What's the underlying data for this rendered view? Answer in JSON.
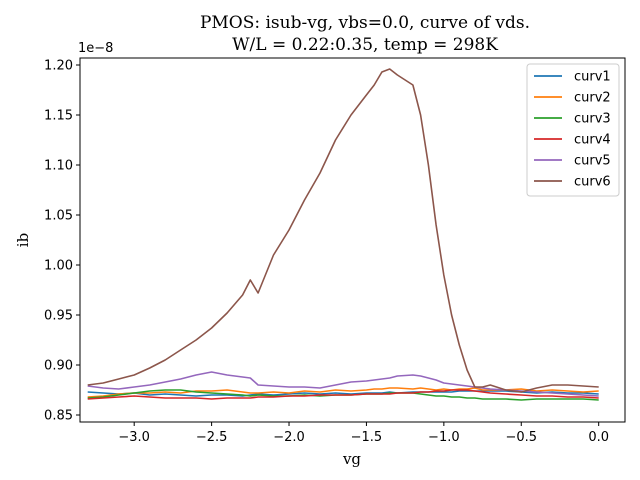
{
  "chart_data": {
    "type": "line",
    "title": "PMOS: isub-vg, vbs=0.0, curve of vds.",
    "subtitle": "W/L = 0.22:0.35, temp = 298K",
    "xlabel": "vg",
    "ylabel": "ib",
    "y_offset_label": "1e−8",
    "xlim": [
      -3.35,
      0.17
    ],
    "ylim": [
      0.843,
      1.207
    ],
    "x_ticks": [
      -3.0,
      -2.5,
      -2.0,
      -1.5,
      -1.0,
      -0.5,
      0.0
    ],
    "x_tick_labels": [
      "−3.0",
      "−2.5",
      "−2.0",
      "−1.5",
      "−1.0",
      "−0.5",
      "0.0"
    ],
    "y_ticks": [
      0.85,
      0.9,
      0.95,
      1.0,
      1.05,
      1.1,
      1.15,
      1.2
    ],
    "y_tick_labels": [
      "0.85",
      "0.90",
      "0.95",
      "1.00",
      "1.05",
      "1.10",
      "1.15",
      "1.20"
    ],
    "legend_position": "top-right",
    "grid": false,
    "x": [
      -3.3,
      -3.2,
      -3.1,
      -3.0,
      -2.9,
      -2.8,
      -2.7,
      -2.6,
      -2.5,
      -2.4,
      -2.3,
      -2.25,
      -2.2,
      -2.1,
      -2.0,
      -1.9,
      -1.8,
      -1.7,
      -1.6,
      -1.5,
      -1.45,
      -1.4,
      -1.35,
      -1.3,
      -1.2,
      -1.15,
      -1.1,
      -1.05,
      -1.0,
      -0.95,
      -0.9,
      -0.85,
      -0.8,
      -0.75,
      -0.7,
      -0.6,
      -0.5,
      -0.4,
      -0.3,
      -0.2,
      -0.1,
      0.0
    ],
    "series": [
      {
        "name": "curv1",
        "color": "#1f77b4",
        "values": [
          0.873,
          0.872,
          0.871,
          0.872,
          0.87,
          0.871,
          0.87,
          0.869,
          0.87,
          0.87,
          0.869,
          0.87,
          0.871,
          0.87,
          0.871,
          0.872,
          0.871,
          0.872,
          0.871,
          0.872,
          0.872,
          0.872,
          0.873,
          0.872,
          0.873,
          0.873,
          0.873,
          0.873,
          0.873,
          0.873,
          0.874,
          0.874,
          0.874,
          0.874,
          0.874,
          0.874,
          0.873,
          0.872,
          0.873,
          0.872,
          0.872,
          0.871
        ]
      },
      {
        "name": "curv2",
        "color": "#ff7f0e",
        "values": [
          0.868,
          0.869,
          0.871,
          0.872,
          0.872,
          0.873,
          0.872,
          0.874,
          0.874,
          0.875,
          0.873,
          0.872,
          0.872,
          0.873,
          0.872,
          0.874,
          0.873,
          0.875,
          0.874,
          0.875,
          0.876,
          0.876,
          0.877,
          0.877,
          0.876,
          0.877,
          0.876,
          0.875,
          0.876,
          0.875,
          0.876,
          0.876,
          0.877,
          0.875,
          0.875,
          0.875,
          0.876,
          0.874,
          0.875,
          0.874,
          0.873,
          0.874
        ]
      },
      {
        "name": "curv3",
        "color": "#2ca02c",
        "values": [
          0.867,
          0.868,
          0.87,
          0.872,
          0.874,
          0.875,
          0.875,
          0.873,
          0.872,
          0.871,
          0.87,
          0.869,
          0.87,
          0.869,
          0.869,
          0.87,
          0.869,
          0.87,
          0.87,
          0.871,
          0.871,
          0.871,
          0.872,
          0.872,
          0.872,
          0.871,
          0.87,
          0.869,
          0.869,
          0.868,
          0.868,
          0.867,
          0.867,
          0.866,
          0.866,
          0.866,
          0.865,
          0.866,
          0.866,
          0.866,
          0.866,
          0.865
        ]
      },
      {
        "name": "curv4",
        "color": "#d62728",
        "values": [
          0.866,
          0.867,
          0.868,
          0.869,
          0.868,
          0.867,
          0.867,
          0.867,
          0.866,
          0.867,
          0.867,
          0.867,
          0.868,
          0.868,
          0.869,
          0.869,
          0.87,
          0.87,
          0.87,
          0.871,
          0.871,
          0.871,
          0.871,
          0.872,
          0.872,
          0.873,
          0.873,
          0.874,
          0.874,
          0.875,
          0.875,
          0.875,
          0.874,
          0.873,
          0.872,
          0.871,
          0.87,
          0.869,
          0.869,
          0.868,
          0.868,
          0.867
        ]
      },
      {
        "name": "curv5",
        "color": "#9467bd",
        "values": [
          0.879,
          0.877,
          0.876,
          0.878,
          0.88,
          0.883,
          0.886,
          0.89,
          0.893,
          0.89,
          0.888,
          0.887,
          0.88,
          0.879,
          0.878,
          0.878,
          0.877,
          0.88,
          0.883,
          0.884,
          0.885,
          0.886,
          0.887,
          0.889,
          0.89,
          0.889,
          0.887,
          0.885,
          0.882,
          0.881,
          0.88,
          0.879,
          0.878,
          0.877,
          0.876,
          0.875,
          0.874,
          0.873,
          0.872,
          0.871,
          0.87,
          0.869
        ]
      },
      {
        "name": "curv6",
        "color": "#8c564b",
        "values": [
          0.88,
          0.882,
          0.886,
          0.89,
          0.897,
          0.905,
          0.915,
          0.925,
          0.937,
          0.952,
          0.97,
          0.985,
          0.972,
          1.01,
          1.035,
          1.065,
          1.092,
          1.125,
          1.15,
          1.17,
          1.18,
          1.193,
          1.196,
          1.19,
          1.18,
          1.15,
          1.1,
          1.04,
          0.99,
          0.95,
          0.92,
          0.895,
          0.878,
          0.878,
          0.88,
          0.875,
          0.873,
          0.877,
          0.88,
          0.88,
          0.879,
          0.878
        ]
      }
    ]
  }
}
